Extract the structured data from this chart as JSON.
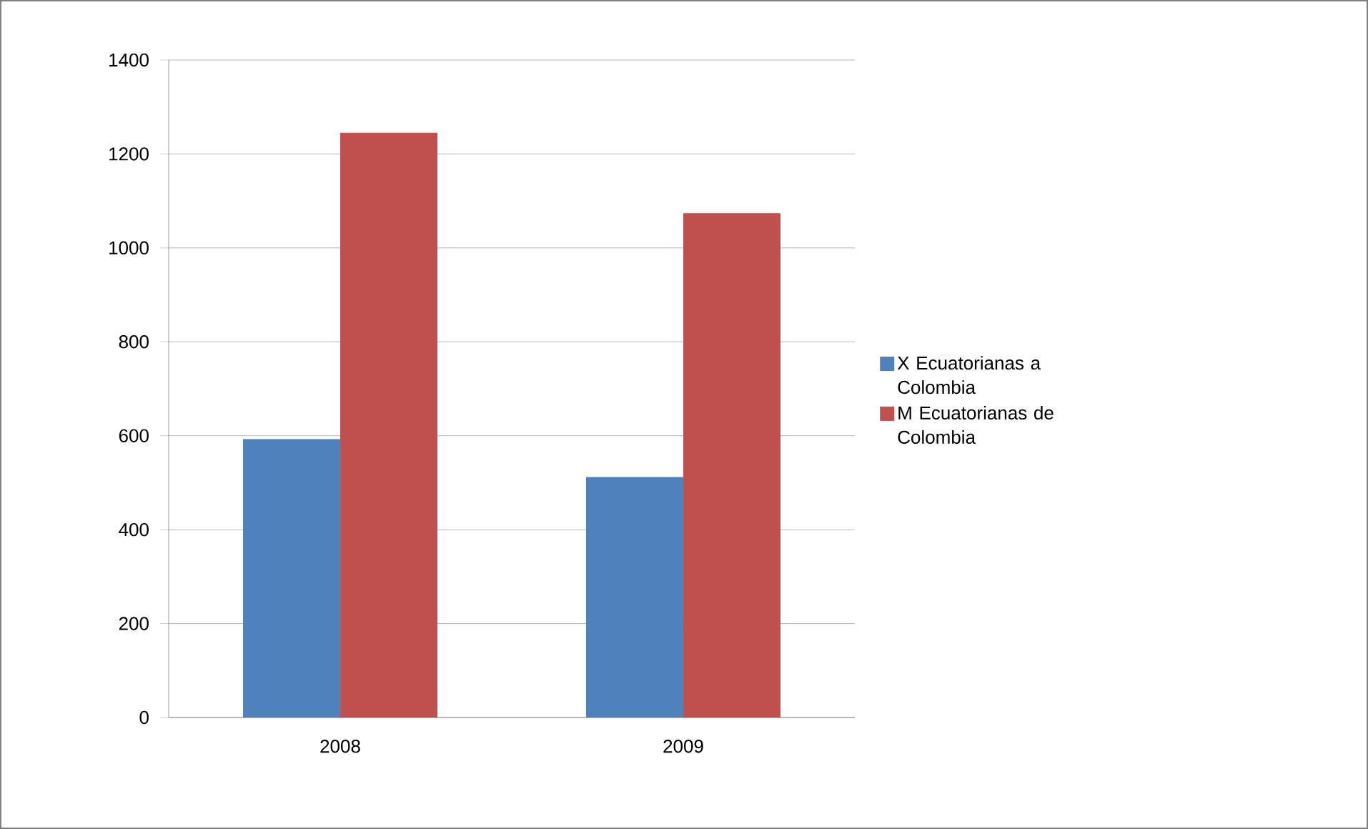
{
  "chart_data": {
    "type": "bar",
    "categories": [
      "2008",
      "2009"
    ],
    "series": [
      {
        "name": "X Ecuatorianas a Colombia",
        "color": "#4f81bd",
        "values": [
          593,
          512
        ]
      },
      {
        "name": "M Ecuatorianas de Colombia",
        "color": "#c0504d",
        "values": [
          1245,
          1074
        ]
      }
    ],
    "ylim": [
      0,
      1400
    ],
    "yticks": [
      0,
      200,
      400,
      600,
      800,
      1000,
      1200,
      1400
    ],
    "grid": "y",
    "legend": "right"
  }
}
